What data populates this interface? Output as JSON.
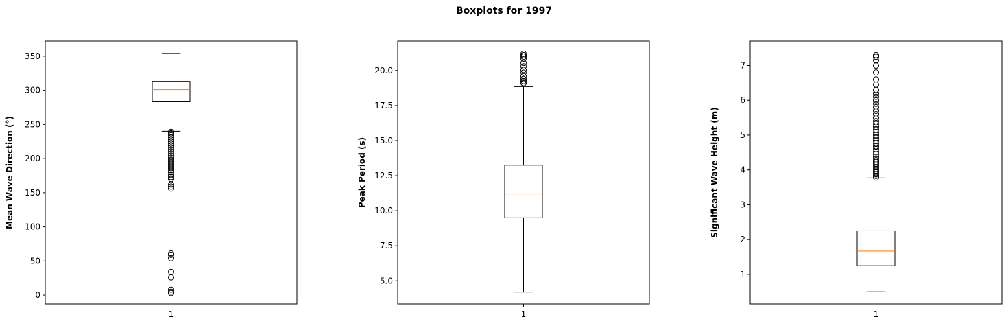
{
  "figure": {
    "title": "Boxplots for 1997"
  },
  "chart_data": [
    {
      "type": "boxplot",
      "ylabel": "Mean Wave Direction (°)",
      "xticks": [
        "1"
      ],
      "ylim": [
        -13,
        372
      ],
      "yticks": [
        0,
        50,
        100,
        150,
        200,
        250,
        300,
        350
      ],
      "grid": false,
      "box": {
        "whisker_low": 240,
        "q1": 284,
        "median": 301,
        "q3": 313,
        "whisker_high": 354
      },
      "outliers": [
        3,
        5,
        8,
        26,
        34,
        54,
        59,
        61,
        156,
        159,
        162,
        170,
        173,
        176,
        180,
        183,
        186,
        189,
        192,
        195,
        198,
        201,
        204,
        207,
        210,
        213,
        216,
        219,
        222,
        225,
        228,
        231,
        234,
        237,
        239
      ],
      "colors": {
        "box": "#000000",
        "median": "#ff7f0e"
      }
    },
    {
      "type": "boxplot",
      "ylabel": "Peak Period (s)",
      "xticks": [
        "1"
      ],
      "ylim": [
        3.35,
        22.1
      ],
      "yticks": [
        5.0,
        7.5,
        10.0,
        12.5,
        15.0,
        17.5,
        20.0
      ],
      "ytick_labels": [
        "5.0",
        "7.5",
        "10.0",
        "12.5",
        "15.0",
        "17.5",
        "20.0"
      ],
      "grid": false,
      "box": {
        "whisker_low": 4.2,
        "q1": 9.5,
        "median": 11.2,
        "q3": 13.25,
        "whisker_high": 18.85
      },
      "outliers": [
        19.1,
        19.25,
        19.4,
        19.6,
        19.85,
        20.05,
        20.3,
        20.55,
        20.85,
        21.0,
        21.1,
        21.2
      ],
      "colors": {
        "box": "#000000",
        "median": "#ff7f0e"
      }
    },
    {
      "type": "boxplot",
      "ylabel": "Significant Wave Height (m)",
      "xticks": [
        "1"
      ],
      "ylim": [
        0.15,
        7.7
      ],
      "yticks": [
        1,
        2,
        3,
        4,
        5,
        6,
        7
      ],
      "grid": false,
      "box": {
        "whisker_low": 0.5,
        "q1": 1.25,
        "median": 1.67,
        "q3": 2.25,
        "whisker_high": 3.77
      },
      "outliers": [
        3.78,
        3.83,
        3.88,
        3.93,
        3.98,
        4.03,
        4.08,
        4.13,
        4.18,
        4.23,
        4.28,
        4.33,
        4.38,
        4.45,
        4.52,
        4.6,
        4.68,
        4.76,
        4.84,
        4.92,
        5.0,
        5.08,
        5.16,
        5.24,
        5.32,
        5.4,
        5.5,
        5.6,
        5.7,
        5.8,
        5.9,
        6.0,
        6.1,
        6.2,
        6.3,
        6.45,
        6.6,
        6.8,
        7.0,
        7.15,
        7.25,
        7.3
      ],
      "colors": {
        "box": "#000000",
        "median": "#ff7f0e"
      }
    }
  ]
}
